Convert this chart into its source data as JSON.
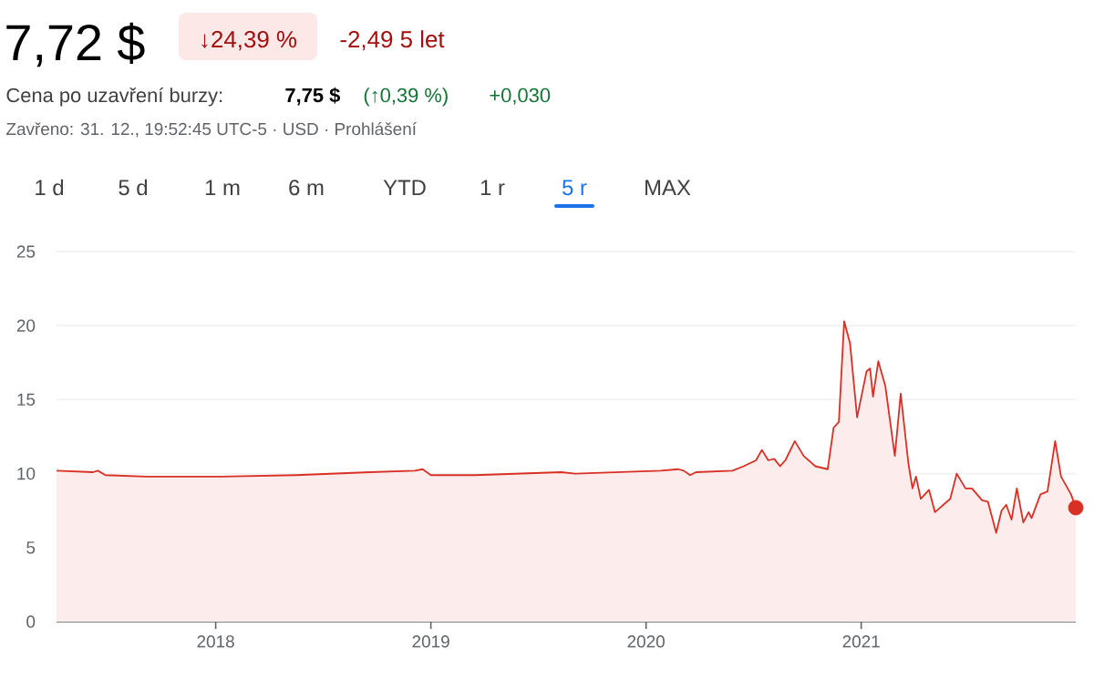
{
  "chart_data": {
    "type": "area",
    "title": "7,72 $",
    "annotations": [
      "↓24,39 %",
      "-2,49 5 let",
      "Cena po uzavření burzy:",
      "7,75 $",
      "(↑0,39 %)",
      "+0,030",
      "Zavřeno: 31. 12., 19:52:45 UTC-5 · USD · Prohlášení",
      "1 d",
      "5 d",
      "1 m",
      "6 m",
      "YTD",
      "1 r",
      "5 r",
      "MAX"
    ],
    "series": [
      {
        "color": "#d93025",
        "x": [
          "2017-04-06",
          "2017-06-07",
          "2017-06-15",
          "2017-06-28",
          "2017-09-06",
          "2018-01-10",
          "2018-05-17",
          "2018-09-20",
          "2018-12-05",
          "2018-12-18",
          "2019-01-01",
          "2019-03-17",
          "2019-08-10",
          "2019-09-03",
          "2020-01-26",
          "2020-02-25",
          "2020-03-05",
          "2020-03-16",
          "2020-03-26",
          "2020-05-27",
          "2020-06-15",
          "2020-07-06",
          "2020-07-16",
          "2020-07-27",
          "2020-08-06",
          "2020-08-16",
          "2020-08-25",
          "2020-09-10",
          "2020-09-25",
          "2020-10-15",
          "2020-11-05",
          "2020-11-15",
          "2020-11-24",
          "2020-12-03",
          "2020-12-13",
          "2020-12-25",
          "2021-01-10",
          "2021-01-16",
          "2021-01-21",
          "2021-01-30",
          "2021-02-11",
          "2021-02-27",
          "2021-03-09",
          "2021-03-22",
          "2021-03-29",
          "2021-04-04",
          "2021-04-12",
          "2021-04-26",
          "2021-05-06",
          "2021-06-01",
          "2021-06-12",
          "2021-06-27",
          "2021-07-08",
          "2021-07-25",
          "2021-08-04",
          "2021-08-18",
          "2021-08-27",
          "2021-09-04",
          "2021-09-13",
          "2021-09-22",
          "2021-10-03",
          "2021-10-12",
          "2021-10-17",
          "2021-11-01",
          "2021-11-13",
          "2021-11-26",
          "2021-12-06",
          "2021-12-23",
          "2021-12-31"
        ],
        "values": [
          10.2,
          10.1,
          10.2,
          9.9,
          9.8,
          9.8,
          9.9,
          10.1,
          10.2,
          10.3,
          9.9,
          9.9,
          10.1,
          10.0,
          10.2,
          10.3,
          10.2,
          9.9,
          10.1,
          10.2,
          10.5,
          10.9,
          11.6,
          10.9,
          11.0,
          10.5,
          10.9,
          12.2,
          11.2,
          10.5,
          10.3,
          13.1,
          13.5,
          20.3,
          18.8,
          13.8,
          16.9,
          17.1,
          15.2,
          17.6,
          15.9,
          11.2,
          15.4,
          10.7,
          9.0,
          9.8,
          8.3,
          8.9,
          7.4,
          8.3,
          10.0,
          9.0,
          9.0,
          8.2,
          8.1,
          6.0,
          7.5,
          7.9,
          6.9,
          9.0,
          6.7,
          7.4,
          7.0,
          8.6,
          8.8,
          12.2,
          9.8,
          8.6,
          7.7
        ]
      },
      {
        "type": "scatter",
        "color": "#d93025",
        "x": [
          "2021-12-31"
        ],
        "values": [
          7.7
        ]
      }
    ],
    "xlim": [
      "2017-04-06",
      "2021-12-31"
    ],
    "xticks": [
      {
        "value": "2018-01-01",
        "label": "2018"
      },
      {
        "value": "2019-01-01",
        "label": "2019"
      },
      {
        "value": "2020-01-01",
        "label": "2020"
      },
      {
        "value": "2021-01-01",
        "label": "2021"
      }
    ],
    "ylim": [
      0,
      25
    ],
    "yticks": [
      0,
      5,
      10,
      15,
      20,
      25
    ],
    "grid": "y"
  }
}
